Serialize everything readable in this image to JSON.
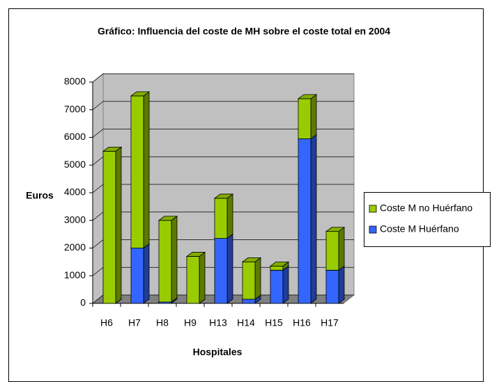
{
  "chart_data": {
    "type": "bar",
    "stacked": true,
    "title": "Gráfico: Influencia del coste de MH sobre el coste total en 2004",
    "x_label": "Hospitales",
    "y_label": "Euros",
    "categories": [
      "H6",
      "H7",
      "H8",
      "H9",
      "H13",
      "H14",
      "H15",
      "H16",
      "H17"
    ],
    "series": [
      {
        "name": "Coste M no Huérfano",
        "color": "#99cc00",
        "values": [
          5500,
          5500,
          2950,
          1700,
          1450,
          1350,
          150,
          1450,
          1400
        ]
      },
      {
        "name": "Coste M Huérfano",
        "color": "#3366ff",
        "values": [
          0,
          2000,
          50,
          0,
          2350,
          150,
          1200,
          5950,
          1200
        ]
      }
    ],
    "ylim": [
      0,
      8000
    ],
    "yticks": [
      0,
      1000,
      2000,
      3000,
      4000,
      5000,
      6000,
      7000,
      8000
    ],
    "grid": true,
    "legend": "right"
  }
}
